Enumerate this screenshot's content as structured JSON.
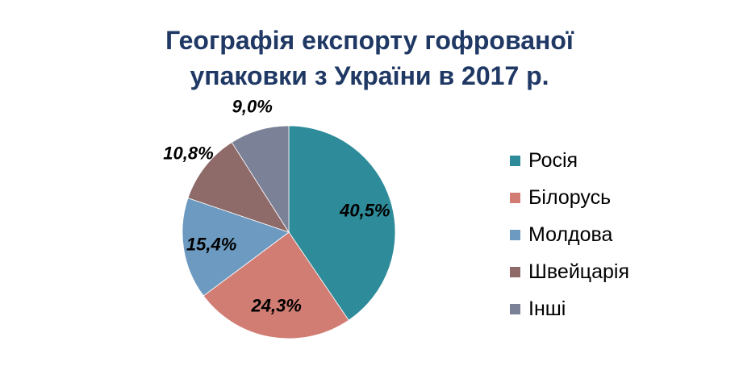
{
  "chart_data": {
    "type": "pie",
    "title_lines": [
      "Географія експорту гофрованої",
      "упаковки з України в 2017 р."
    ],
    "categories": [
      "Росія",
      "Білорусь",
      "Молдова",
      "Швейцарія",
      "Інші"
    ],
    "values": [
      40.5,
      24.3,
      15.4,
      10.8,
      9.0
    ],
    "data_labels": [
      "40,5%",
      "24,3%",
      "15,4%",
      "10,8%",
      "9,0%"
    ],
    "colors": [
      "#2E8B99",
      "#D17D74",
      "#6C9AC0",
      "#8E6A68",
      "#7B8197"
    ],
    "legend_position": "right",
    "start": "12 o'clock, clockwise"
  }
}
